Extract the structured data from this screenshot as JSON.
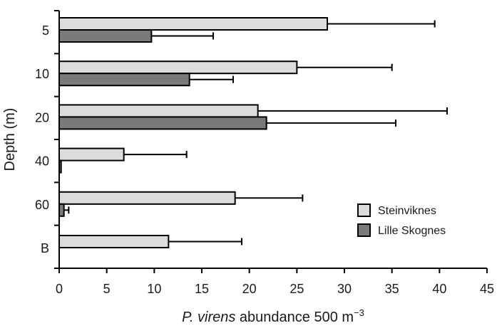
{
  "chart_data": {
    "type": "bar",
    "orientation": "horizontal",
    "title": "",
    "xlabel": {
      "italic": "P. virens",
      "text": " abundance 500 m",
      "superscript": "−3"
    },
    "ylabel": "Depth (m)",
    "xlim": [
      0,
      45
    ],
    "x_ticks": [
      0,
      5,
      10,
      15,
      20,
      25,
      30,
      35,
      40,
      45
    ],
    "categories": [
      "5",
      "10",
      "20",
      "40",
      "60",
      "B"
    ],
    "series": [
      {
        "name": "Steinviknes",
        "color": "#dcdcdc",
        "values": [
          28.2,
          25.0,
          20.9,
          6.8,
          18.5,
          11.5
        ],
        "errors": [
          11.3,
          10.0,
          19.9,
          6.6,
          7.1,
          7.7
        ]
      },
      {
        "name": "Lille Skognes",
        "color": "#7a7a7a",
        "values": [
          9.7,
          13.7,
          21.8,
          0.2,
          0.5,
          0.0
        ],
        "errors": [
          6.5,
          4.6,
          13.6,
          0.0,
          0.5,
          0.0
        ]
      }
    ],
    "legend_position": "right",
    "grid": false
  }
}
